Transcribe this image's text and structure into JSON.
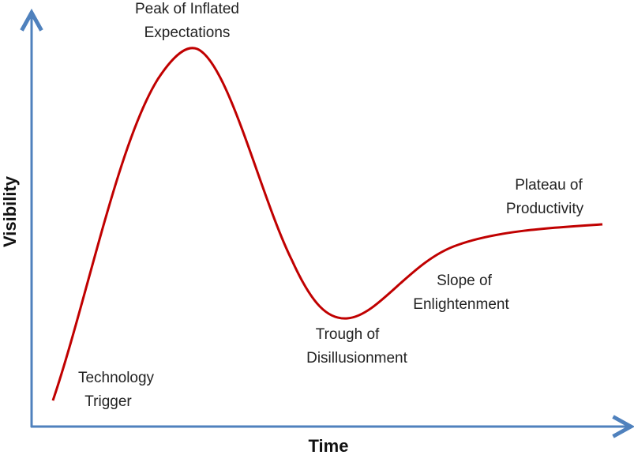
{
  "axes": {
    "x_label": "Time",
    "y_label": "Visibility"
  },
  "phases": [
    {
      "lines": [
        "Technology",
        "Trigger"
      ]
    },
    {
      "lines": [
        "Peak of Inflated",
        "Expectations"
      ]
    },
    {
      "lines": [
        "Trough of",
        "Disillusionment"
      ]
    },
    {
      "lines": [
        "Slope of",
        "Enlightenment"
      ]
    },
    {
      "lines": [
        "Plateau of",
        "Productivity"
      ]
    }
  ]
}
